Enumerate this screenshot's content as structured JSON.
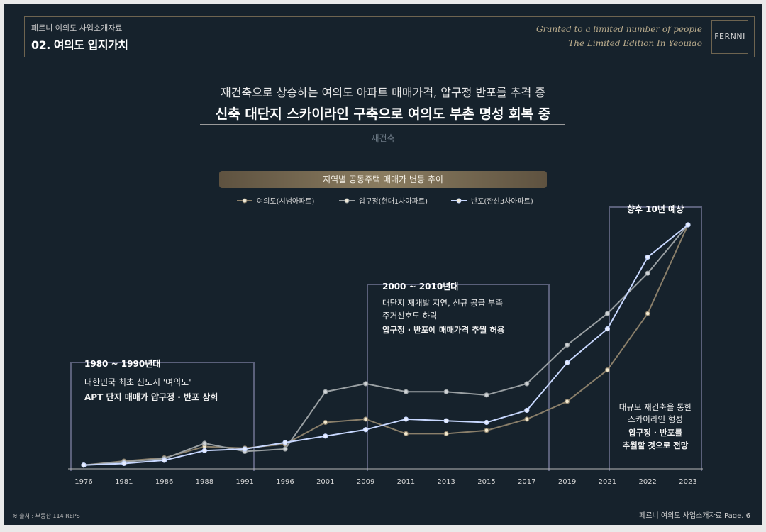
{
  "header": {
    "doc_label": "페르니 여의도 사업소개자료",
    "section_title": "02. 여의도 입지가치",
    "script_line1": "Granted to a limited number of people",
    "script_line2": "The Limited Edition In Yeouido",
    "logo": "FERNNI"
  },
  "subtitle": {
    "line1": "재건축으로 상승하는 여의도 아파트 매매가격, 압구정 반포를 추격 중",
    "line2": "신축 대단지 스카이라인 구축으로 여의도 부촌 명성 회복 중",
    "tagline": "재건축"
  },
  "chart_title": "지역별 공동주택 매매가 변동 추이",
  "footer": {
    "source": "※ 출처 : 부동산 114 REPS",
    "page": "페르니 여의도 사업소개자료 Page. 6"
  },
  "colors": {
    "yeouido": "#8a7f6a",
    "apgujeong": "#9aa0a3",
    "banpo": "#c8d8ff",
    "annotation_frame": "#5a607a",
    "background": "#16222c"
  },
  "chart_data": {
    "type": "line",
    "categories": [
      "1976",
      "1981",
      "1986",
      "1988",
      "1991",
      "1996",
      "2001",
      "2009",
      "2011",
      "2013",
      "2015",
      "2017",
      "2019",
      "2021",
      "2022",
      "2023"
    ],
    "series": [
      {
        "name": "여의도(시범아파트)",
        "color": "#8a7f6a",
        "values": [
          1.0,
          3.5,
          5.5,
          12.5,
          11.5,
          14.0,
          27.5,
          29.5,
          20.5,
          20.5,
          22.5,
          29.5,
          40.5,
          60.0,
          95.0,
          150.0
        ]
      },
      {
        "name": "압구정(현대1차아파트)",
        "color": "#9aa0a3",
        "values": [
          1.0,
          3.0,
          5.0,
          14.5,
          9.5,
          11.0,
          46.5,
          51.5,
          46.5,
          46.5,
          44.5,
          51.5,
          75.5,
          95.0,
          120.0,
          150.0
        ]
      },
      {
        "name": "반포(한신3차아파트)",
        "color": "#c8d8ff",
        "values": [
          1.0,
          2.0,
          4.0,
          10.0,
          11.0,
          15.0,
          19.0,
          23.0,
          29.5,
          28.5,
          27.5,
          35.0,
          64.5,
          85.5,
          130.0,
          150.0
        ]
      }
    ],
    "ylim": [
      0,
      150
    ],
    "legend": "top-center",
    "annotations": [
      {
        "title": "1980 ~ 1990년대",
        "lines": [
          "대한민국 최초 신도시 '여의도'",
          "APT 단지 매매가 압구정 · 반포 상회"
        ]
      },
      {
        "title": "2000 ~ 2010년대",
        "lines": [
          "대단지 재개발 지연, 신규 공급 부족",
          "주거선호도 하락",
          "압구정 · 반포에 매매가격 추월 허용"
        ]
      },
      {
        "title": "향후 10년 예상",
        "lines": [
          "대규모 재건축을 통한",
          "스카이라인 형성",
          "압구정 · 반포를",
          "추월할 것으로 전망"
        ]
      }
    ]
  }
}
